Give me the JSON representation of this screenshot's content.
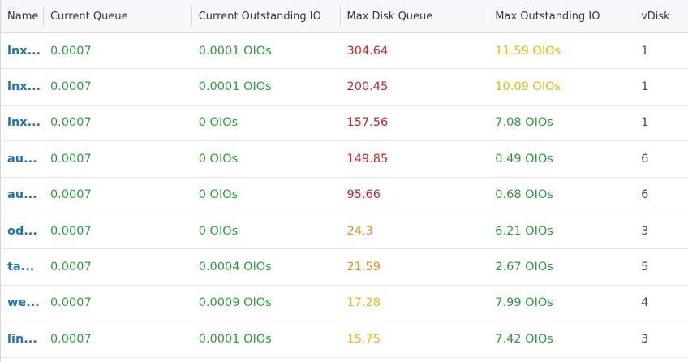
{
  "columns": [
    "Name",
    "Current Queue",
    "Current Outstanding IO",
    "Max Disk Queue",
    "Max Outstanding IO",
    "vDisk"
  ],
  "colors": {
    "green": "#2e9a3e",
    "red": "#c0282f",
    "orange": "#e88c18",
    "yellow": "#e8b714",
    "link": "#1f74b5"
  },
  "rows": [
    {
      "name": "lnx...",
      "current_queue": "0.0007",
      "current_oio": "0.0001 OIOs",
      "max_disk_queue": "304.64",
      "max_disk_queue_color": "red",
      "max_oio": "11.59 OIOs",
      "max_oio_color": "yellow",
      "vdisk": "1"
    },
    {
      "name": "lnx...",
      "current_queue": "0.0007",
      "current_oio": "0.0001 OIOs",
      "max_disk_queue": "200.45",
      "max_disk_queue_color": "red",
      "max_oio": "10.09 OIOs",
      "max_oio_color": "yellow",
      "vdisk": "1"
    },
    {
      "name": "lnx...",
      "current_queue": "0.0007",
      "current_oio": "0 OIOs",
      "max_disk_queue": "157.56",
      "max_disk_queue_color": "red",
      "max_oio": "7.08 OIOs",
      "max_oio_color": "green",
      "vdisk": "1"
    },
    {
      "name": "au...",
      "current_queue": "0.0007",
      "current_oio": "0 OIOs",
      "max_disk_queue": "149.85",
      "max_disk_queue_color": "red",
      "max_oio": "0.49 OIOs",
      "max_oio_color": "green",
      "vdisk": "6"
    },
    {
      "name": "au...",
      "current_queue": "0.0007",
      "current_oio": "0 OIOs",
      "max_disk_queue": "95.66",
      "max_disk_queue_color": "red",
      "max_oio": "0.68 OIOs",
      "max_oio_color": "green",
      "vdisk": "6"
    },
    {
      "name": "od...",
      "current_queue": "0.0007",
      "current_oio": "0 OIOs",
      "max_disk_queue": "24.3",
      "max_disk_queue_color": "orange",
      "max_oio": "6.21 OIOs",
      "max_oio_color": "green",
      "vdisk": "3"
    },
    {
      "name": "ta...",
      "current_queue": "0.0007",
      "current_oio": "0.0004 OIOs",
      "max_disk_queue": "21.59",
      "max_disk_queue_color": "orange",
      "max_oio": "2.67 OIOs",
      "max_oio_color": "green",
      "vdisk": "5"
    },
    {
      "name": "we...",
      "current_queue": "0.0007",
      "current_oio": "0.0009 OIOs",
      "max_disk_queue": "17.28",
      "max_disk_queue_color": "yellow",
      "max_oio": "7.99 OIOs",
      "max_oio_color": "green",
      "vdisk": "4"
    },
    {
      "name": "lin...",
      "current_queue": "0.0007",
      "current_oio": "0.0001 OIOs",
      "max_disk_queue": "15.75",
      "max_disk_queue_color": "yellow",
      "max_oio": "7.42 OIOs",
      "max_oio_color": "green",
      "vdisk": "3"
    }
  ]
}
